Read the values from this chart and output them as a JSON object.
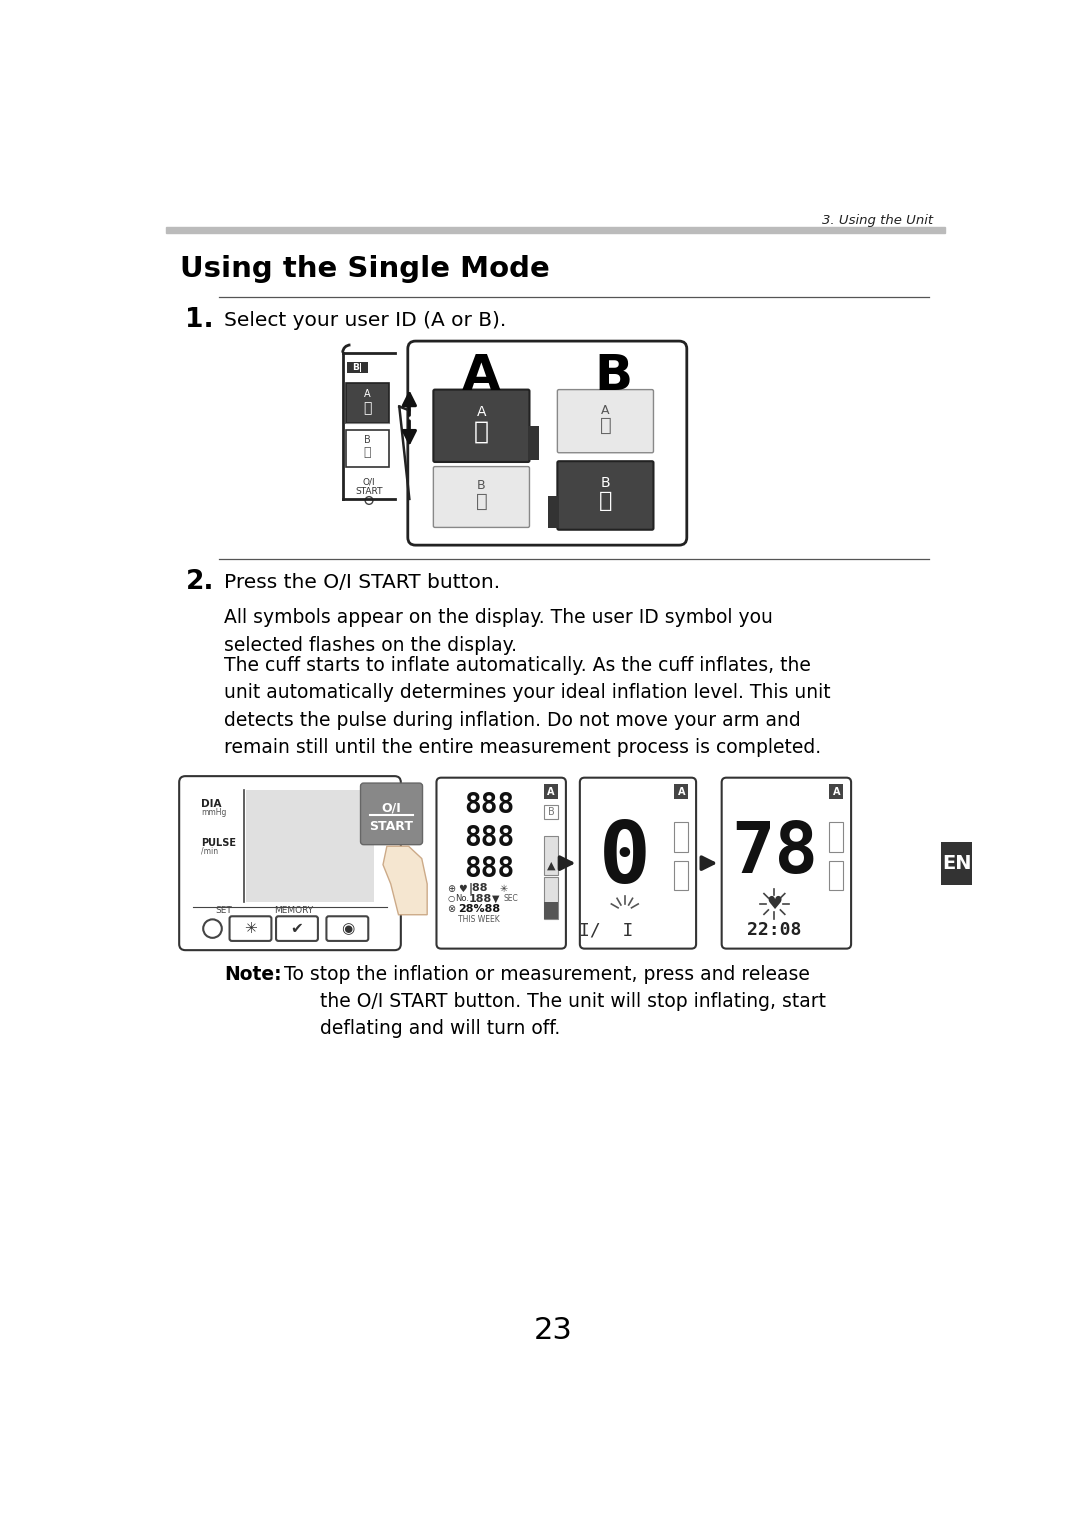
{
  "page_bg": "#ffffff",
  "header_text": "3. Using the Unit",
  "title": "Using the Single Mode",
  "step1_num": "1.",
  "step1_text": "Select your user ID (A or B).",
  "step2_num": "2.",
  "step2_text": "Press the O/I START button.",
  "step2_para1": "All symbols appear on the display. The user ID symbol you\nselected flashes on the display.",
  "step2_para2": "The cuff starts to inflate automatically. As the cuff inflates, the\nunit automatically determines your ideal inflation level. This unit\ndetects the pulse during inflation. Do not move your arm and\nremain still until the entire measurement process is completed.",
  "note_bold": "Note:",
  "note_text": " To stop the inflation or measurement, press and release\n       the O/I START button. The unit will stop inflating, start\n       deflating and will turn off.",
  "page_number": "23",
  "en_label": "EN"
}
